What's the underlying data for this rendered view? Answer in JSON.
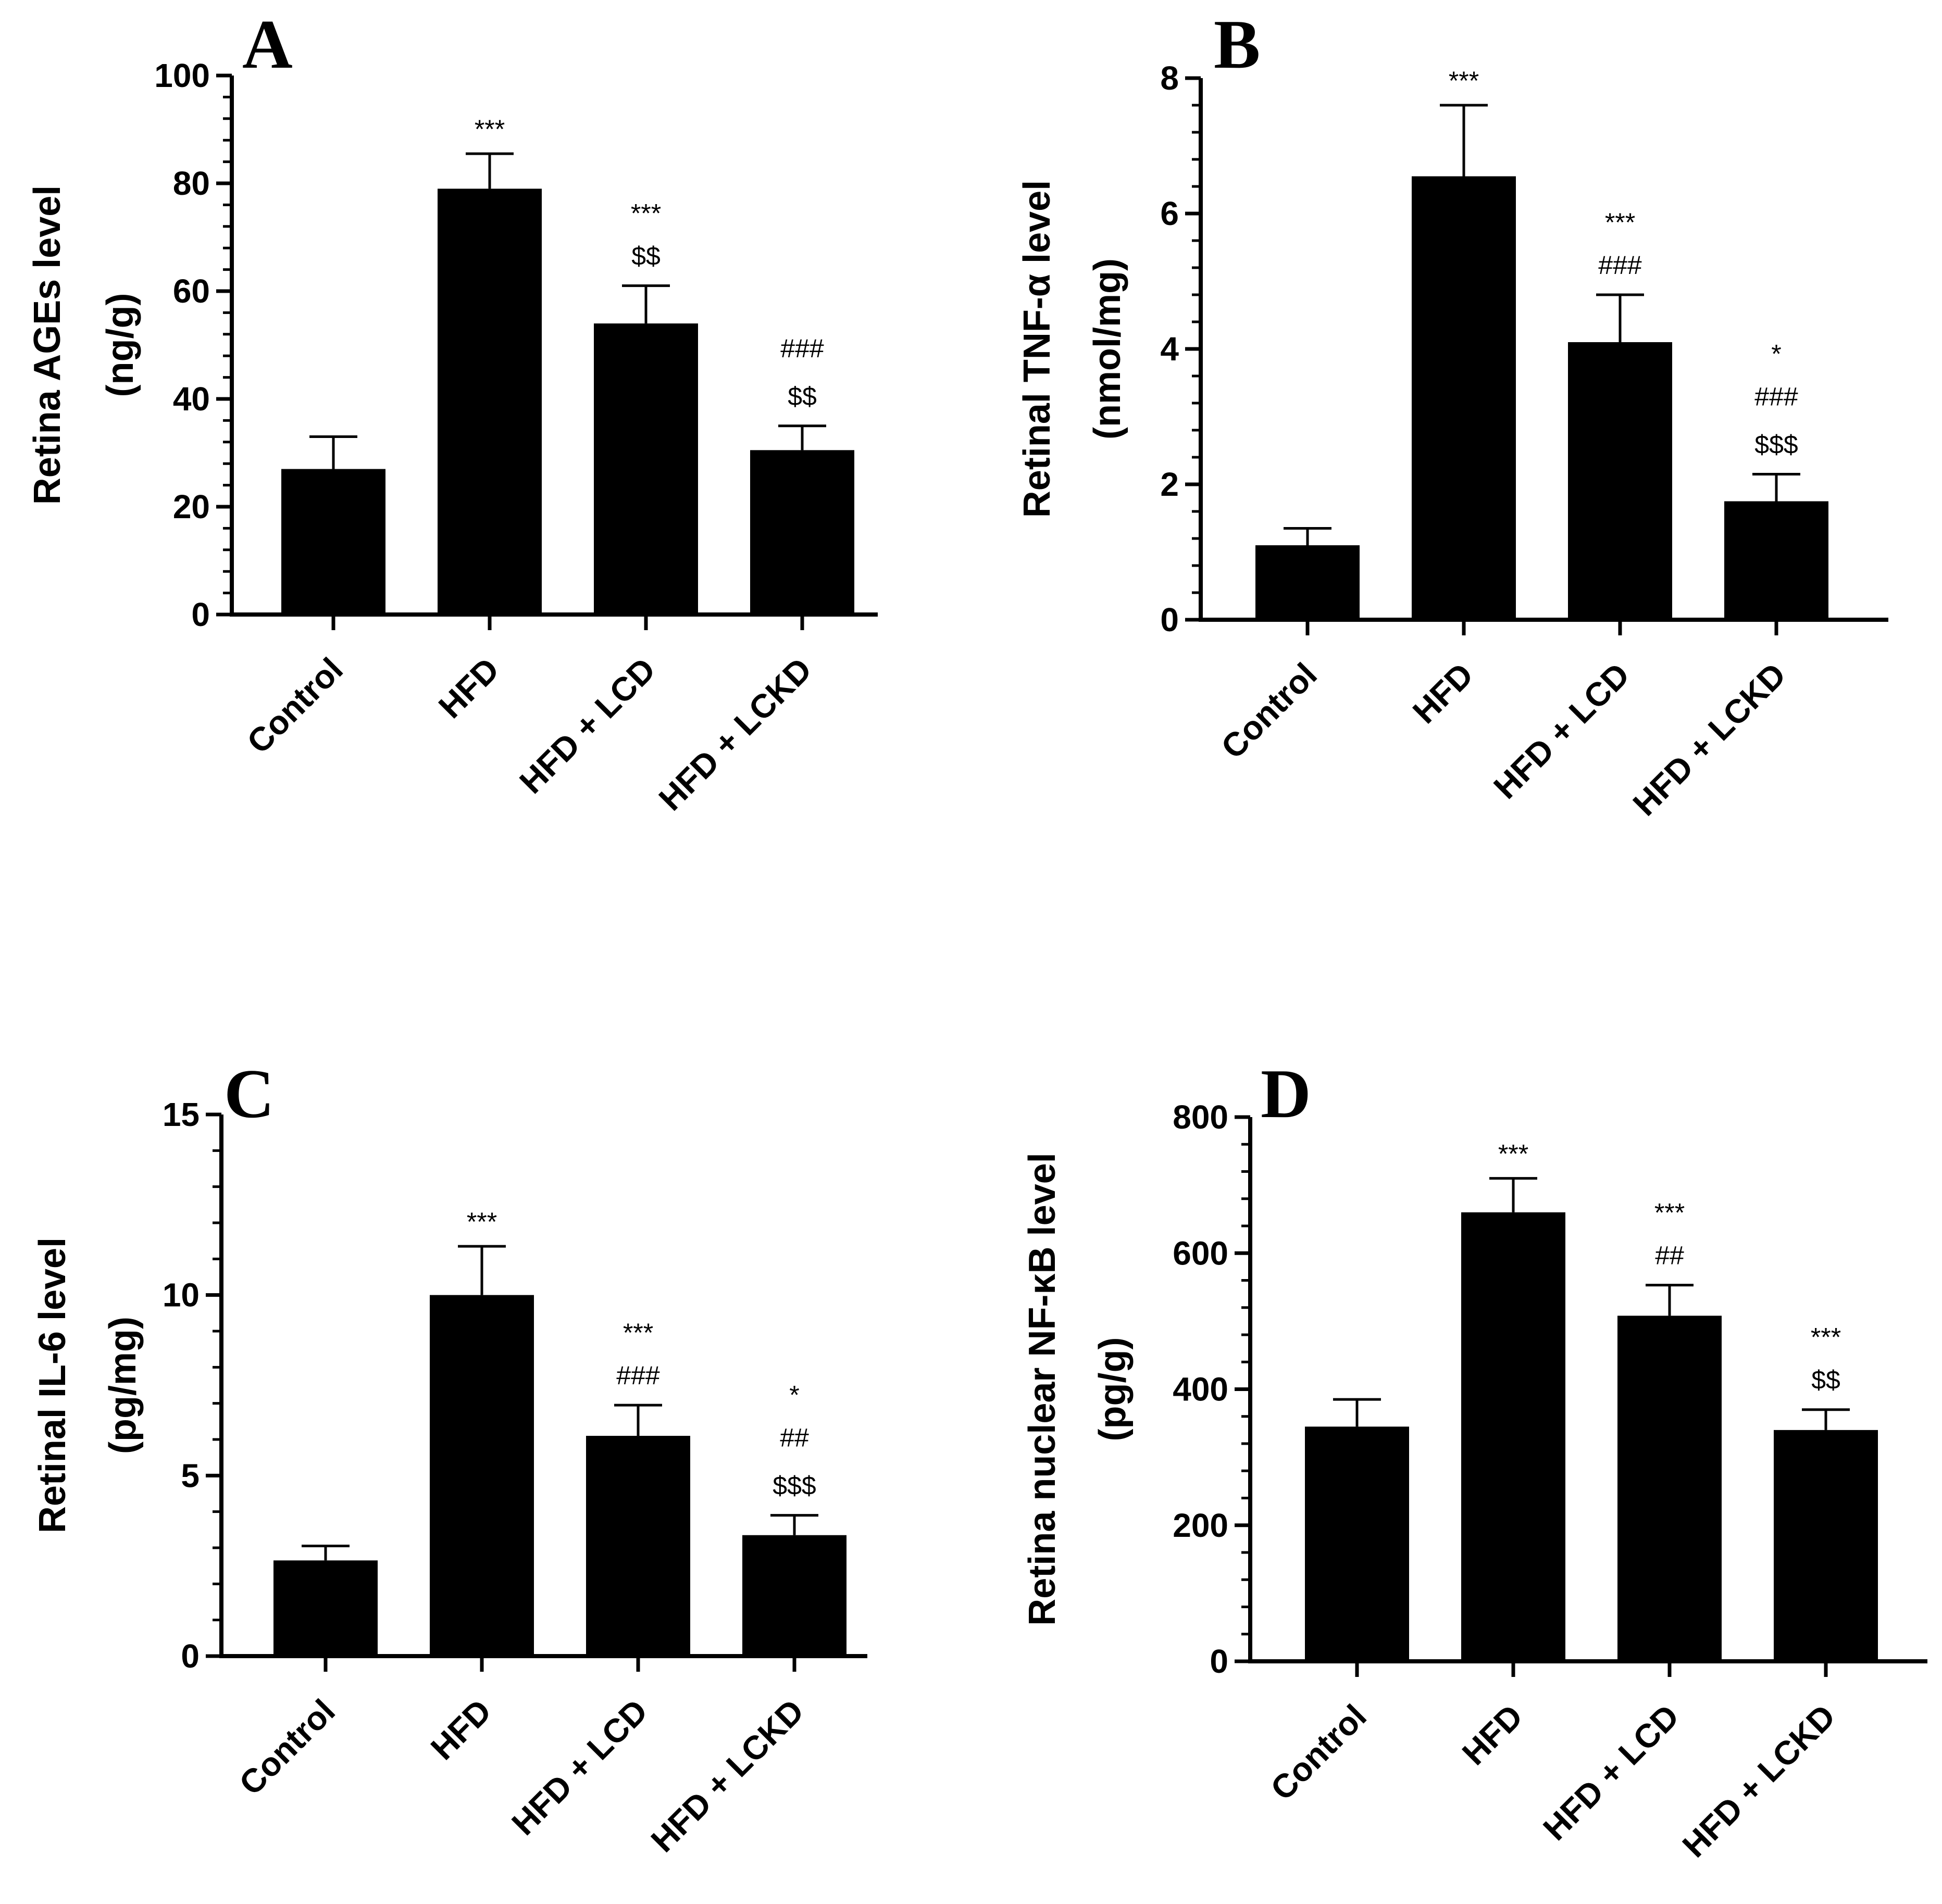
{
  "chart_data": [
    {
      "type": "bar",
      "panel": "A",
      "categories": [
        "Control",
        "HFD",
        "HFD + LCD",
        "HFD + LCKD"
      ],
      "values": [
        27,
        79,
        54,
        30.5
      ],
      "errors": [
        6,
        6.5,
        7,
        4.5
      ],
      "annotations": [
        [],
        [
          "***"
        ],
        [
          "***",
          "$$"
        ],
        [
          "###",
          "$$"
        ]
      ],
      "ylabel_lines": [
        "Retina AGEs level",
        "(ng/g)"
      ],
      "ylim": [
        0,
        100
      ],
      "yticks": [
        0,
        20,
        40,
        60,
        80,
        100
      ],
      "xlabel": "",
      "bar_color": "#000000"
    },
    {
      "type": "bar",
      "panel": "B",
      "categories": [
        "Control",
        "HFD",
        "HFD + LCD",
        "HFD + LCKD"
      ],
      "values": [
        1.1,
        6.55,
        4.1,
        1.75
      ],
      "errors": [
        0.25,
        1.05,
        0.7,
        0.4
      ],
      "annotations": [
        [],
        [
          "***"
        ],
        [
          "***",
          "###"
        ],
        [
          "*",
          "###",
          "$$$"
        ]
      ],
      "ylabel_lines": [
        "Retinal TNF-α level",
        "(nmol/mg)"
      ],
      "ylim": [
        0,
        8
      ],
      "yticks": [
        0,
        2,
        4,
        6,
        8
      ],
      "xlabel": "",
      "bar_color": "#000000"
    },
    {
      "type": "bar",
      "panel": "C",
      "categories": [
        "Control",
        "HFD",
        "HFD + LCD",
        "HFD + LCKD"
      ],
      "values": [
        2.65,
        10,
        6.1,
        3.35
      ],
      "errors": [
        0.4,
        1.35,
        0.85,
        0.55
      ],
      "annotations": [
        [],
        [
          "***"
        ],
        [
          "***",
          "###"
        ],
        [
          "*",
          "##",
          "$$$"
        ]
      ],
      "ylabel_lines": [
        "Retinal IL-6 level",
        "(pg/mg)"
      ],
      "ylim": [
        0,
        15
      ],
      "yticks": [
        0,
        5,
        10,
        15
      ],
      "xlabel": "",
      "bar_color": "#000000"
    },
    {
      "type": "bar",
      "panel": "D",
      "categories": [
        "Control",
        "HFD",
        "HFD + LCD",
        "HFD + LCKD"
      ],
      "values": [
        345,
        660,
        508,
        340
      ],
      "errors": [
        40,
        50,
        45,
        30
      ],
      "annotations": [
        [],
        [
          "***"
        ],
        [
          "***",
          "##"
        ],
        [
          "***",
          "$$"
        ]
      ],
      "ylabel_lines": [
        "Retina nuclear NF-κB level",
        "(pg/g)"
      ],
      "ylim": [
        0,
        800
      ],
      "yticks": [
        0,
        200,
        400,
        600,
        800
      ],
      "xlabel": "",
      "bar_color": "#000000"
    }
  ]
}
